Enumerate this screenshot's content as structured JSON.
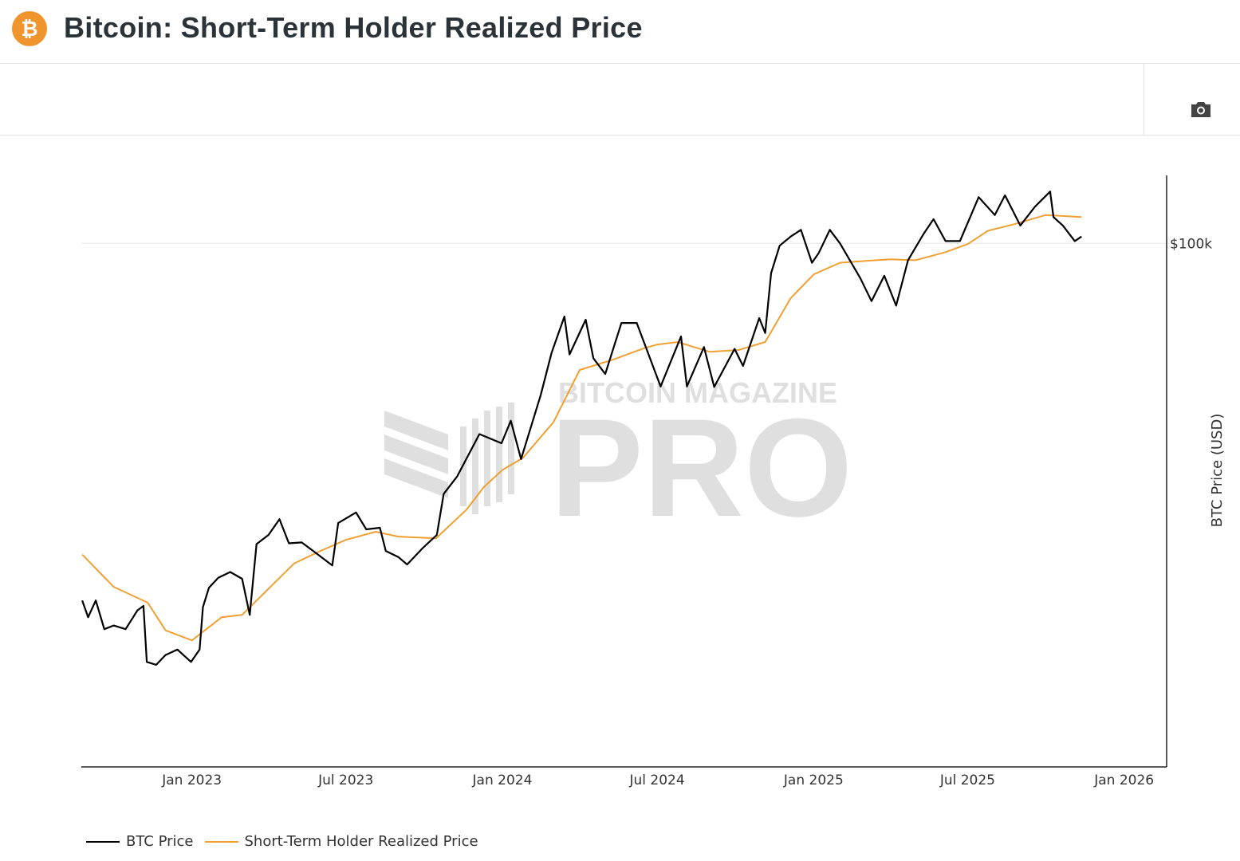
{
  "header": {
    "title": "Bitcoin: Short-Term Holder Realized Price",
    "logo_icon": "bitcoin-icon"
  },
  "toolbar": {
    "camera_icon": "camera-icon"
  },
  "watermark": {
    "line1": "BITCOIN MAGAZINE",
    "line2": "PRO"
  },
  "colors": {
    "btc": "#000000",
    "sth": "#f0a032",
    "logo": "#f0952e"
  },
  "chart_data": {
    "type": "line",
    "title": "Bitcoin: Short-Term Holder Realized Price",
    "ylabel": "BTC Price (USD)",
    "yscale": "log",
    "ylim": [
      10500,
      134000
    ],
    "xlim": [
      "2022-08-24",
      "2026-02-20"
    ],
    "yticks": [
      {
        "value": 100000,
        "label": "$100k"
      }
    ],
    "xticks": [
      {
        "date": "2023-01-01",
        "label": "Jan 2023"
      },
      {
        "date": "2023-07-01",
        "label": "Jul 2023"
      },
      {
        "date": "2024-01-01",
        "label": "Jan 2024"
      },
      {
        "date": "2024-07-01",
        "label": "Jul 2024"
      },
      {
        "date": "2025-01-01",
        "label": "Jan 2025"
      },
      {
        "date": "2025-07-01",
        "label": "Jul 2025"
      },
      {
        "date": "2026-01-01",
        "label": "Jan 2026"
      }
    ],
    "grid": "horizontal at $100k",
    "legend_position": "bottom-left",
    "series": [
      {
        "name": "BTC Price",
        "color": "#000000",
        "points": [
          [
            "2022-08-25",
            21500
          ],
          [
            "2022-09-01",
            20000
          ],
          [
            "2022-09-10",
            21500
          ],
          [
            "2022-09-20",
            19000
          ],
          [
            "2022-10-01",
            19300
          ],
          [
            "2022-10-15",
            19000
          ],
          [
            "2022-10-29",
            20600
          ],
          [
            "2022-11-05",
            21000
          ],
          [
            "2022-11-09",
            16500
          ],
          [
            "2022-11-20",
            16300
          ],
          [
            "2022-12-01",
            17000
          ],
          [
            "2022-12-15",
            17400
          ],
          [
            "2022-12-31",
            16500
          ],
          [
            "2023-01-10",
            17400
          ],
          [
            "2023-01-14",
            20900
          ],
          [
            "2023-01-21",
            22700
          ],
          [
            "2023-02-01",
            23700
          ],
          [
            "2023-02-15",
            24300
          ],
          [
            "2023-03-01",
            23600
          ],
          [
            "2023-03-10",
            20200
          ],
          [
            "2023-03-18",
            27400
          ],
          [
            "2023-04-01",
            28500
          ],
          [
            "2023-04-14",
            30500
          ],
          [
            "2023-04-25",
            27500
          ],
          [
            "2023-05-10",
            27600
          ],
          [
            "2023-05-25",
            26500
          ],
          [
            "2023-06-15",
            25000
          ],
          [
            "2023-06-22",
            30000
          ],
          [
            "2023-07-13",
            31400
          ],
          [
            "2023-07-25",
            29200
          ],
          [
            "2023-08-10",
            29400
          ],
          [
            "2023-08-17",
            26600
          ],
          [
            "2023-09-01",
            25900
          ],
          [
            "2023-09-11",
            25100
          ],
          [
            "2023-09-30",
            27000
          ],
          [
            "2023-10-16",
            28500
          ],
          [
            "2023-10-24",
            34000
          ],
          [
            "2023-11-09",
            36700
          ],
          [
            "2023-12-05",
            44000
          ],
          [
            "2023-12-31",
            42300
          ],
          [
            "2024-01-11",
            46600
          ],
          [
            "2024-01-23",
            39500
          ],
          [
            "2024-02-15",
            52000
          ],
          [
            "2024-02-28",
            62500
          ],
          [
            "2024-03-14",
            73000
          ],
          [
            "2024-03-20",
            62000
          ],
          [
            "2024-04-08",
            72000
          ],
          [
            "2024-04-17",
            61000
          ],
          [
            "2024-05-01",
            57000
          ],
          [
            "2024-05-20",
            71000
          ],
          [
            "2024-06-07",
            71000
          ],
          [
            "2024-07-05",
            54000
          ],
          [
            "2024-07-29",
            67000
          ],
          [
            "2024-08-05",
            54000
          ],
          [
            "2024-08-25",
            64000
          ],
          [
            "2024-09-06",
            53900
          ],
          [
            "2024-09-30",
            63500
          ],
          [
            "2024-10-10",
            59000
          ],
          [
            "2024-10-29",
            72500
          ],
          [
            "2024-11-05",
            68000
          ],
          [
            "2024-11-12",
            88000
          ],
          [
            "2024-11-22",
            99000
          ],
          [
            "2024-12-05",
            103000
          ],
          [
            "2024-12-17",
            106000
          ],
          [
            "2024-12-30",
            92000
          ],
          [
            "2025-01-07",
            96000
          ],
          [
            "2025-01-20",
            106000
          ],
          [
            "2025-02-01",
            100000
          ],
          [
            "2025-02-25",
            86000
          ],
          [
            "2025-03-10",
            78000
          ],
          [
            "2025-03-25",
            87000
          ],
          [
            "2025-04-08",
            76500
          ],
          [
            "2025-04-22",
            93000
          ],
          [
            "2025-05-10",
            104000
          ],
          [
            "2025-05-22",
            111000
          ],
          [
            "2025-06-05",
            101000
          ],
          [
            "2025-06-22",
            101000
          ],
          [
            "2025-07-14",
            122000
          ],
          [
            "2025-08-02",
            113000
          ],
          [
            "2025-08-14",
            123000
          ],
          [
            "2025-09-01",
            108000
          ],
          [
            "2025-09-18",
            117000
          ],
          [
            "2025-10-06",
            125000
          ],
          [
            "2025-10-10",
            112000
          ],
          [
            "2025-10-21",
            108000
          ],
          [
            "2025-11-04",
            101000
          ],
          [
            "2025-11-12",
            103000
          ]
        ]
      },
      {
        "name": "Short-Term Holder Realized Price",
        "color": "#f0a032",
        "points": [
          [
            "2022-08-25",
            26200
          ],
          [
            "2022-10-01",
            22800
          ],
          [
            "2022-11-10",
            21300
          ],
          [
            "2022-12-01",
            18900
          ],
          [
            "2023-01-01",
            18100
          ],
          [
            "2023-02-05",
            20000
          ],
          [
            "2023-03-01",
            20200
          ],
          [
            "2023-04-01",
            22600
          ],
          [
            "2023-05-01",
            25200
          ],
          [
            "2023-06-01",
            26600
          ],
          [
            "2023-07-01",
            27900
          ],
          [
            "2023-08-05",
            28900
          ],
          [
            "2023-09-01",
            28300
          ],
          [
            "2023-10-15",
            28100
          ],
          [
            "2023-11-20",
            31800
          ],
          [
            "2023-12-10",
            35000
          ],
          [
            "2024-01-01",
            37700
          ],
          [
            "2024-01-25",
            39700
          ],
          [
            "2024-03-01",
            46300
          ],
          [
            "2024-04-01",
            58000
          ],
          [
            "2024-05-10",
            60600
          ],
          [
            "2024-06-15",
            63600
          ],
          [
            "2024-07-01",
            64700
          ],
          [
            "2024-07-25",
            65400
          ],
          [
            "2024-09-01",
            62700
          ],
          [
            "2024-10-05",
            63200
          ],
          [
            "2024-11-05",
            65400
          ],
          [
            "2024-12-05",
            79000
          ],
          [
            "2025-01-01",
            87500
          ],
          [
            "2025-02-01",
            92000
          ],
          [
            "2025-03-01",
            92700
          ],
          [
            "2025-04-01",
            93400
          ],
          [
            "2025-05-01",
            93000
          ],
          [
            "2025-06-05",
            96300
          ],
          [
            "2025-07-01",
            99700
          ],
          [
            "2025-07-25",
            105600
          ],
          [
            "2025-08-25",
            108600
          ],
          [
            "2025-10-01",
            113000
          ],
          [
            "2025-11-12",
            112000
          ]
        ]
      }
    ]
  }
}
